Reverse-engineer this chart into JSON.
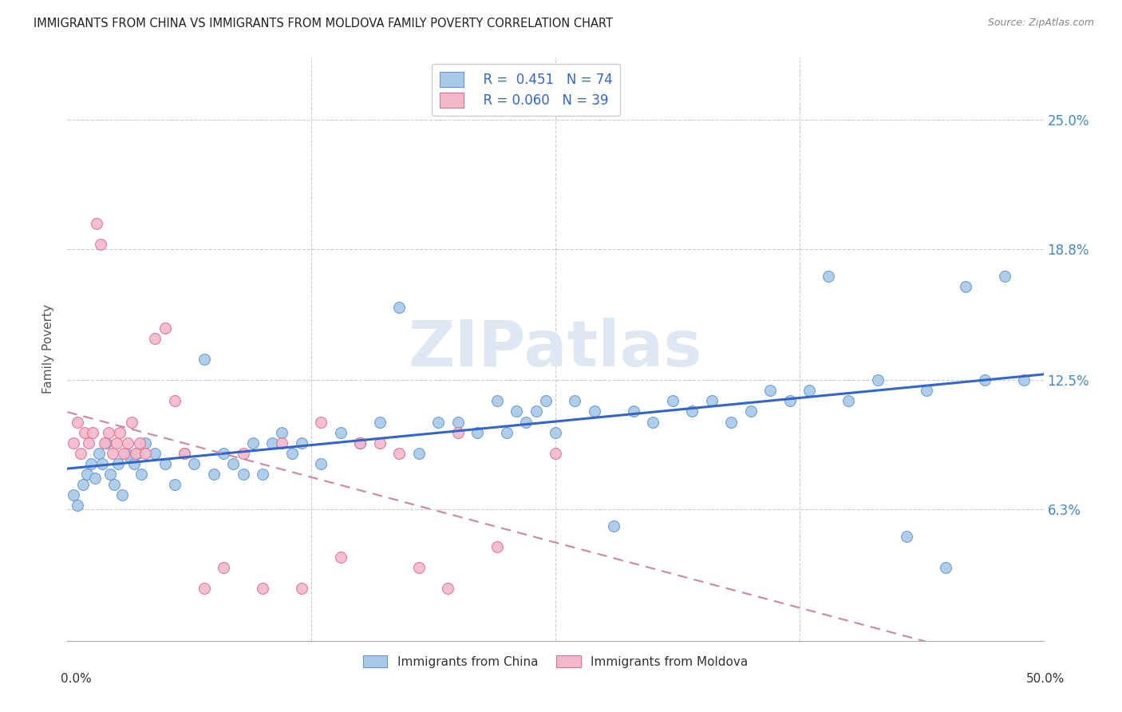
{
  "title": "IMMIGRANTS FROM CHINA VS IMMIGRANTS FROM MOLDOVA FAMILY POVERTY CORRELATION CHART",
  "source": "Source: ZipAtlas.com",
  "ylabel": "Family Poverty",
  "ytick_vals": [
    6.3,
    12.5,
    18.8,
    25.0
  ],
  "ytick_labels": [
    "6.3%",
    "12.5%",
    "18.8%",
    "25.0%"
  ],
  "xlim": [
    0.0,
    50.0
  ],
  "ylim": [
    0.0,
    28.0
  ],
  "china_R": 0.451,
  "china_N": 74,
  "moldova_R": 0.06,
  "moldova_N": 39,
  "china_color": "#a8c8e8",
  "china_edge_color": "#6699cc",
  "moldova_color": "#f5b8ca",
  "moldova_edge_color": "#e07090",
  "china_line_color": "#3366cc",
  "moldova_line_color": "#cc8899",
  "watermark_color": "#e0e8f0",
  "legend_label_china": "Immigrants from China",
  "legend_label_moldova": "Immigrants from Moldova",
  "china_x": [
    0.3,
    0.5,
    0.8,
    1.0,
    1.2,
    1.4,
    1.6,
    1.8,
    2.0,
    2.2,
    2.4,
    2.6,
    2.8,
    3.0,
    3.2,
    3.4,
    3.6,
    3.8,
    4.0,
    4.5,
    5.0,
    5.5,
    6.0,
    6.5,
    7.0,
    7.5,
    8.0,
    8.5,
    9.0,
    9.5,
    10.0,
    10.5,
    11.0,
    11.5,
    12.0,
    13.0,
    14.0,
    15.0,
    16.0,
    17.0,
    18.0,
    19.0,
    20.0,
    21.0,
    22.0,
    22.5,
    23.0,
    23.5,
    24.0,
    24.5,
    25.0,
    26.0,
    27.0,
    28.0,
    29.0,
    30.0,
    31.0,
    32.0,
    33.0,
    34.0,
    35.0,
    36.0,
    37.0,
    38.0,
    39.0,
    40.0,
    41.5,
    43.0,
    44.0,
    45.0,
    46.0,
    47.0,
    48.0,
    49.0
  ],
  "china_y": [
    7.0,
    6.5,
    7.5,
    8.0,
    8.5,
    7.8,
    9.0,
    8.5,
    9.5,
    8.0,
    7.5,
    8.5,
    7.0,
    9.0,
    8.8,
    8.5,
    9.0,
    8.0,
    9.5,
    9.0,
    8.5,
    7.5,
    9.0,
    8.5,
    13.5,
    8.0,
    9.0,
    8.5,
    8.0,
    9.5,
    8.0,
    9.5,
    10.0,
    9.0,
    9.5,
    8.5,
    10.0,
    9.5,
    10.5,
    16.0,
    9.0,
    10.5,
    10.5,
    10.0,
    11.5,
    10.0,
    11.0,
    10.5,
    11.0,
    11.5,
    10.0,
    11.5,
    11.0,
    5.5,
    11.0,
    10.5,
    11.5,
    11.0,
    11.5,
    10.5,
    11.0,
    12.0,
    11.5,
    12.0,
    17.5,
    11.5,
    12.5,
    5.0,
    12.0,
    3.5,
    17.0,
    12.5,
    17.5,
    12.5
  ],
  "moldova_x": [
    0.3,
    0.5,
    0.7,
    0.9,
    1.1,
    1.3,
    1.5,
    1.7,
    1.9,
    2.1,
    2.3,
    2.5,
    2.7,
    2.9,
    3.1,
    3.3,
    3.5,
    3.7,
    4.0,
    4.5,
    5.0,
    5.5,
    6.0,
    7.0,
    8.0,
    9.0,
    10.0,
    11.0,
    12.0,
    13.0,
    14.0,
    15.0,
    16.0,
    17.0,
    18.0,
    19.5,
    20.0,
    22.0,
    25.0
  ],
  "moldova_y": [
    9.5,
    10.5,
    9.0,
    10.0,
    9.5,
    10.0,
    20.0,
    19.0,
    9.5,
    10.0,
    9.0,
    9.5,
    10.0,
    9.0,
    9.5,
    10.5,
    9.0,
    9.5,
    9.0,
    14.5,
    15.0,
    11.5,
    9.0,
    2.5,
    3.5,
    9.0,
    2.5,
    9.5,
    2.5,
    10.5,
    4.0,
    9.5,
    9.5,
    9.0,
    3.5,
    2.5,
    10.0,
    4.5,
    9.0
  ]
}
